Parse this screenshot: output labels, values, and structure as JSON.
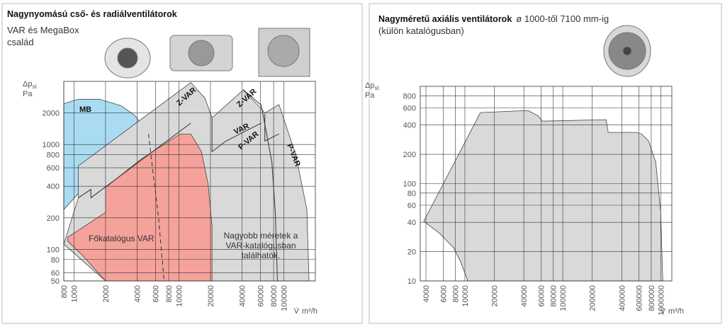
{
  "chart_data": [
    {
      "type": "area",
      "title": "Nagynyomású cső- és radiálventilátorok",
      "subtitle": [
        "VAR és MegaBox",
        "család"
      ],
      "y_label": {
        "symbol": "Δp",
        "subscript": "st",
        "unit": "Pa"
      },
      "x_label": {
        "symbol": "V̇",
        "unit": "m³/h"
      },
      "xscale": "log",
      "yscale": "log",
      "grid": true,
      "xlim": [
        800,
        200000
      ],
      "ylim": [
        50,
        4000
      ],
      "xticks": [
        800,
        1000,
        2000,
        4000,
        6000,
        8000,
        10000,
        20000,
        40000,
        60000,
        80000,
        100000
      ],
      "yticks": [
        50,
        60,
        80,
        100,
        200,
        400,
        600,
        800,
        1000,
        2000
      ],
      "series": [
        {
          "name": "MB",
          "color": "#a9dcf2",
          "fill": true,
          "x": [
            800,
            800,
            1100,
            1750,
            2800,
            3800,
            4400
          ],
          "values": [
            240,
            2450,
            2700,
            2700,
            2350,
            1900,
            1550
          ]
        },
        {
          "name": "P-VAR",
          "color": "#d9d9d9",
          "fill": true,
          "x": [
            800,
            1100,
            1100,
            13000,
            17700,
            20700,
            41000,
            61000,
            66000,
            90000,
            130000,
            166000,
            174000,
            2000
          ],
          "values": [
            112,
            310,
            625,
            3900,
            2770,
            1800,
            3300,
            2200,
            2000,
            2400,
            800,
            240,
            50,
            50
          ]
        },
        {
          "name": "Főkatalógus VAR",
          "color": "#f5a29b",
          "fill": true,
          "x": [
            2000,
            1200,
            870,
            870,
            2000,
            2000,
            4400,
            10300,
            13000,
            16400,
            19000,
            20700,
            20700
          ],
          "values": [
            50,
            88,
            120,
            130,
            225,
            390,
            730,
            1260,
            1260,
            855,
            420,
            165,
            50
          ]
        },
        {
          "name": "Z-VAR",
          "color": "#333333",
          "fill": false,
          "x": [
            1100,
            1450,
            1450,
            13000
          ],
          "values": [
            310,
            373,
            310,
            1600
          ]
        },
        {
          "name": "VAR",
          "color": "#333333",
          "fill": false,
          "x": [
            20700,
            20700,
            28200,
            61000
          ],
          "values": [
            1790,
            855,
            1080,
            1600
          ]
        },
        {
          "name": "P-VAR",
          "color": "#333333",
          "fill": false,
          "x": [
            66000,
            66000,
            90000
          ],
          "values": [
            1960,
            1080,
            1260
          ]
        },
        {
          "name": "VAR",
          "color": "#333333",
          "fill": false,
          "x": [
            41000,
            61000,
            77000,
            83000,
            87000
          ],
          "values": [
            3340,
            2370,
            676,
            226,
            50
          ]
        },
        {
          "color": "#333333",
          "fill": false,
          "dash": true,
          "x": [
            5140,
            5600,
            6400,
            7230
          ],
          "values": [
            1260,
            600,
            200,
            50
          ]
        }
      ],
      "annotations": [
        "MB",
        "Z-VAR",
        "Z-VAR",
        "VAR",
        "P-VAR",
        "P-VAR",
        "Főkatalógus VAR"
      ],
      "note": [
        "Nagyobb méretek a",
        "VAR-katalógusban",
        "találhatók."
      ]
    },
    {
      "type": "area",
      "title": "Nagyméretű axiális ventilátorok",
      "subtitle": "ø 1000-től 7100 mm-ig",
      "note": "(külön katalógusban)",
      "y_label": {
        "symbol": "Δp",
        "subscript": "st",
        "unit": "Pa"
      },
      "x_label": {
        "symbol": "V̇",
        "unit": "m³/h"
      },
      "xscale": "log",
      "yscale": "log",
      "grid": true,
      "xlim": [
        3500,
        1300000
      ],
      "ylim": [
        10,
        1000
      ],
      "xticks": [
        4000,
        6000,
        8000,
        10000,
        20000,
        40000,
        60000,
        80000,
        100000,
        200000,
        400000,
        600000,
        800000,
        1000000
      ],
      "yticks": [
        10,
        20,
        40,
        60,
        80,
        100,
        200,
        400,
        600,
        800
      ],
      "series": [
        {
          "color": "#d9d9d9",
          "fill": true,
          "x": [
            3800,
            14400,
            44100,
            56700,
            61700,
            277000,
            291000,
            568000,
            637000,
            753000,
            890000,
            1000000,
            1050000,
            10700,
            9050,
            7650,
            5480
          ],
          "values": [
            41,
            537,
            565,
            493,
            439,
            454,
            336,
            336,
            324,
            274,
            166,
            51,
            10,
            10,
            15.7,
            22,
            31
          ]
        }
      ]
    }
  ]
}
